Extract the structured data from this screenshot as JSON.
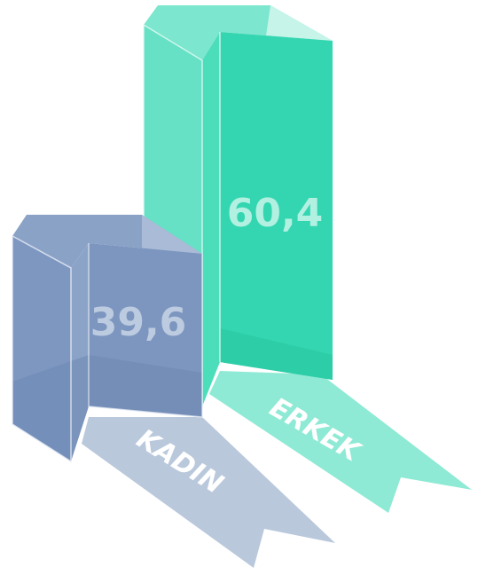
{
  "chart_data": {
    "type": "bar",
    "categories": [
      "KADIN",
      "ERKEK"
    ],
    "values": [
      "39,6",
      "60,4"
    ],
    "numeric_values": [
      39.6,
      60.4
    ],
    "colors": {
      "KADIN": {
        "front": "#7F98C0",
        "side": "#8FA6C9",
        "ribbon": "#BAC8DC",
        "text": "#BCCBE0"
      },
      "ERKEK": {
        "front": "#3FD9B5",
        "side": "#56E0C0",
        "ribbon": "#8EEAD4",
        "text": "#B2F0E1"
      }
    },
    "title": "",
    "xlabel": "",
    "ylabel": "",
    "grid": false,
    "legend": "none"
  }
}
